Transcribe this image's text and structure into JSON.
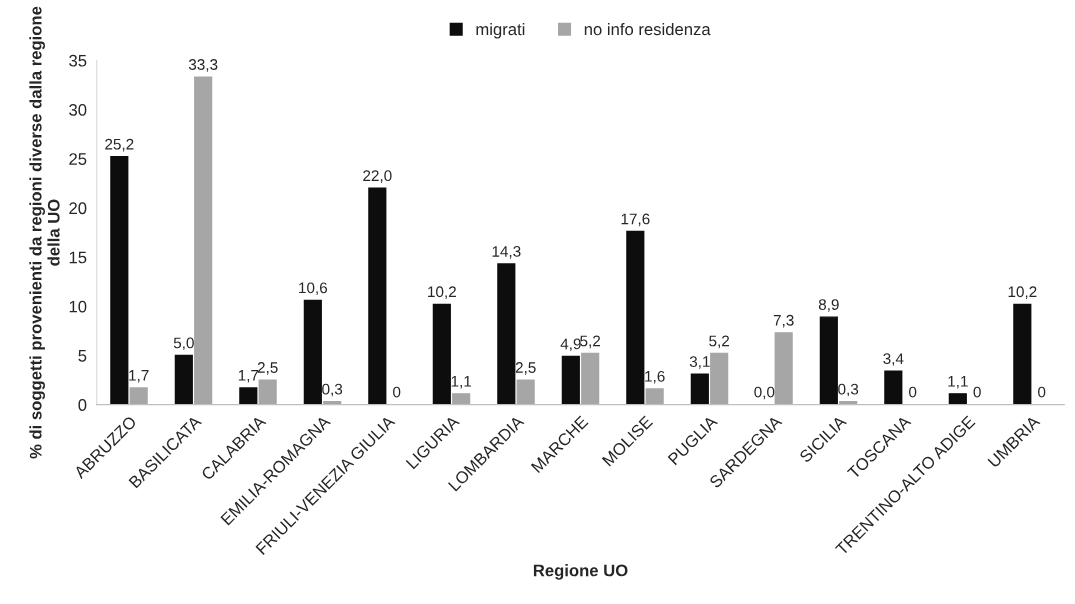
{
  "chart_data": {
    "type": "bar",
    "xlabel": "Regione UO",
    "ylabel": "% di soggetti provenienti da regioni diverse dalla regione della UO",
    "categories": [
      "ABRUZZO",
      "BASILICATA",
      "CALABRIA",
      "EMILIA-ROMAGNA",
      "FRIULI-VENEZIA GIULIA",
      "LIGURIA",
      "LOMBARDIA",
      "MARCHE",
      "MOLISE",
      "PUGLIA",
      "SARDEGNA",
      "SICILIA",
      "TOSCANA",
      "TRENTINO-ALTO ADIGE",
      "UMBRIA"
    ],
    "series": [
      {
        "name": "migrati",
        "color": "#0d0d0d",
        "values": [
          25.2,
          5.0,
          1.7,
          10.6,
          22.0,
          10.2,
          14.3,
          4.9,
          17.6,
          3.1,
          0.0,
          8.9,
          3.4,
          1.1,
          10.2
        ],
        "value_labels": [
          "25,2",
          "5,0",
          "1,7",
          "10,6",
          "22,0",
          "10,2",
          "14,3",
          "4,9",
          "17,6",
          "3,1",
          "0,0",
          "8,9",
          "3,4",
          "1,1",
          "10,2"
        ]
      },
      {
        "name": "no info residenza",
        "color": "#a6a6a6",
        "values": [
          1.7,
          33.3,
          2.5,
          0.3,
          0,
          1.1,
          2.5,
          5.2,
          1.6,
          5.2,
          7.3,
          0.3,
          0,
          0,
          0
        ],
        "value_labels": [
          "1,7",
          "33,3",
          "2,5",
          "0,3",
          "0",
          "1,1",
          "2,5",
          "5,2",
          "1,6",
          "5,2",
          "7,3",
          "0,3",
          "0",
          "0",
          "0"
        ]
      }
    ],
    "ylim": [
      0,
      35
    ],
    "yticks": [
      0,
      5,
      10,
      15,
      20,
      25,
      30,
      35
    ],
    "grid": false,
    "legend": "top"
  }
}
